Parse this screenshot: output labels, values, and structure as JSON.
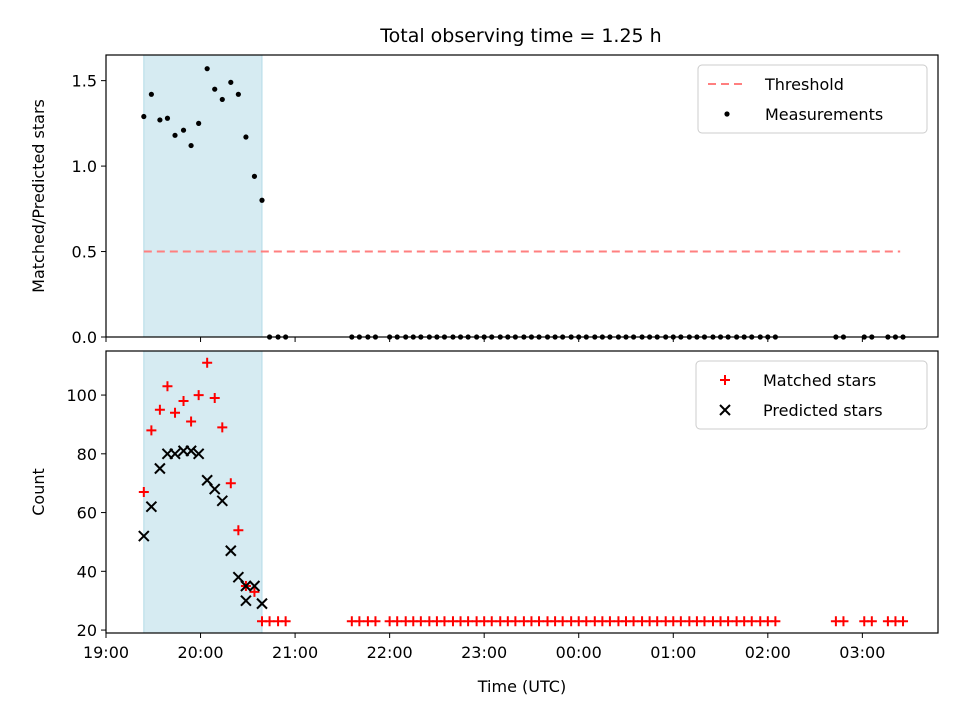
{
  "figure": {
    "title": "Total observing time = 1.25 h"
  },
  "chart_data": [
    {
      "type": "scatter",
      "name": "ratio-panel",
      "ylabel": "Matched/Predicted stars",
      "ylim": [
        0,
        1.65
      ],
      "yticks": [
        0.0,
        0.5,
        1.0,
        1.5
      ],
      "ytick_labels": [
        "0.0",
        "0.5",
        "1.0",
        "1.5"
      ],
      "xlim": [
        19.0,
        27.8
      ],
      "legend": {
        "placement": "top-right",
        "entries": [
          "Threshold",
          "Measurements"
        ]
      },
      "threshold": {
        "name": "Threshold",
        "y": 0.5,
        "x": [
          19.4,
          27.4
        ],
        "color": "#ff7f7f"
      },
      "shaded_interval": [
        19.4,
        20.65
      ],
      "series": [
        {
          "name": "Measurements",
          "x": [
            19.4,
            19.48,
            19.57,
            19.65,
            19.73,
            19.82,
            19.9,
            19.98,
            20.07,
            20.15,
            20.23,
            20.32,
            20.4,
            20.48,
            20.57,
            20.65,
            20.73,
            20.82,
            20.9,
            21.6,
            21.68,
            21.77,
            21.85,
            22.0,
            22.08,
            22.17,
            22.25,
            22.33,
            22.42,
            22.5,
            22.58,
            22.67,
            22.75,
            22.83,
            22.92,
            23.0,
            23.08,
            23.17,
            23.25,
            23.33,
            23.42,
            23.5,
            23.58,
            23.67,
            23.75,
            23.83,
            23.92,
            24.0,
            24.08,
            24.17,
            24.25,
            24.33,
            24.42,
            24.5,
            24.58,
            24.67,
            24.75,
            24.83,
            24.92,
            25.0,
            25.08,
            25.17,
            25.25,
            25.33,
            25.42,
            25.5,
            25.58,
            25.67,
            25.75,
            25.83,
            25.92,
            26.0,
            26.08,
            26.72,
            26.8,
            27.02,
            27.1,
            27.27,
            27.35,
            27.43
          ],
          "y": [
            1.29,
            1.42,
            1.27,
            1.28,
            1.18,
            1.21,
            1.12,
            1.25,
            1.57,
            1.45,
            1.39,
            1.49,
            1.42,
            1.17,
            0.94,
            0.8,
            0,
            0,
            0,
            0,
            0,
            0,
            0,
            0,
            0,
            0,
            0,
            0,
            0,
            0,
            0,
            0,
            0,
            0,
            0,
            0,
            0,
            0,
            0,
            0,
            0,
            0,
            0,
            0,
            0,
            0,
            0,
            0,
            0,
            0,
            0,
            0,
            0,
            0,
            0,
            0,
            0,
            0,
            0,
            0,
            0,
            0,
            0,
            0,
            0,
            0,
            0,
            0,
            0,
            0,
            0,
            0,
            0,
            0,
            0,
            0,
            0,
            0,
            0,
            0
          ],
          "color": "#000000"
        }
      ]
    },
    {
      "type": "scatter",
      "name": "count-panel",
      "xlabel": "Time (UTC)",
      "ylabel": "Count",
      "ylim": [
        19,
        115
      ],
      "yticks": [
        20,
        40,
        60,
        80,
        100
      ],
      "ytick_labels": [
        "20",
        "40",
        "60",
        "80",
        "100"
      ],
      "xlim": [
        19.0,
        27.8
      ],
      "xticks": [
        19,
        20,
        21,
        22,
        23,
        24,
        25,
        26,
        27
      ],
      "xtick_labels": [
        "19:00",
        "20:00",
        "21:00",
        "22:00",
        "23:00",
        "00:00",
        "01:00",
        "02:00",
        "03:00"
      ],
      "legend": {
        "placement": "top-right",
        "entries": [
          "Matched stars",
          "Predicted stars"
        ]
      },
      "shaded_interval": [
        19.4,
        20.65
      ],
      "series": [
        {
          "name": "Matched stars",
          "marker": "plus",
          "color": "#ff0000",
          "x": [
            19.4,
            19.48,
            19.57,
            19.65,
            19.73,
            19.82,
            19.9,
            19.98,
            20.07,
            20.15,
            20.23,
            20.32,
            20.4,
            20.48,
            20.57,
            20.65,
            20.73,
            20.82,
            20.9,
            21.6,
            21.68,
            21.77,
            21.85,
            22.0,
            22.08,
            22.17,
            22.25,
            22.33,
            22.42,
            22.5,
            22.58,
            22.67,
            22.75,
            22.83,
            22.92,
            23.0,
            23.08,
            23.17,
            23.25,
            23.33,
            23.42,
            23.5,
            23.58,
            23.67,
            23.75,
            23.83,
            23.92,
            24.0,
            24.08,
            24.17,
            24.25,
            24.33,
            24.42,
            24.5,
            24.58,
            24.67,
            24.75,
            24.83,
            24.92,
            25.0,
            25.08,
            25.17,
            25.25,
            25.33,
            25.42,
            25.5,
            25.58,
            25.67,
            25.75,
            25.83,
            25.92,
            26.0,
            26.08,
            26.72,
            26.8,
            27.02,
            27.1,
            27.27,
            27.35,
            27.43
          ],
          "y": [
            67,
            88,
            95,
            103,
            94,
            98,
            91,
            100,
            111,
            99,
            89,
            70,
            54,
            35,
            33,
            23,
            23,
            23,
            23,
            23,
            23,
            23,
            23,
            23,
            23,
            23,
            23,
            23,
            23,
            23,
            23,
            23,
            23,
            23,
            23,
            23,
            23,
            23,
            23,
            23,
            23,
            23,
            23,
            23,
            23,
            23,
            23,
            23,
            23,
            23,
            23,
            23,
            23,
            23,
            23,
            23,
            23,
            23,
            23,
            23,
            23,
            23,
            23,
            23,
            23,
            23,
            23,
            23,
            23,
            23,
            23,
            23,
            23,
            23,
            23,
            23,
            23,
            23,
            23,
            23
          ]
        },
        {
          "name": "Predicted stars",
          "marker": "x",
          "color": "#000000",
          "x": [
            19.4,
            19.48,
            19.57,
            19.65,
            19.73,
            19.82,
            19.9,
            19.98,
            20.07,
            20.15,
            20.23,
            20.32,
            20.4,
            20.48,
            20.48,
            20.57,
            20.65
          ],
          "y": [
            52,
            62,
            75,
            80,
            80,
            81,
            81,
            80,
            71,
            68,
            64,
            47,
            38,
            35,
            30,
            35,
            29
          ]
        }
      ]
    }
  ]
}
